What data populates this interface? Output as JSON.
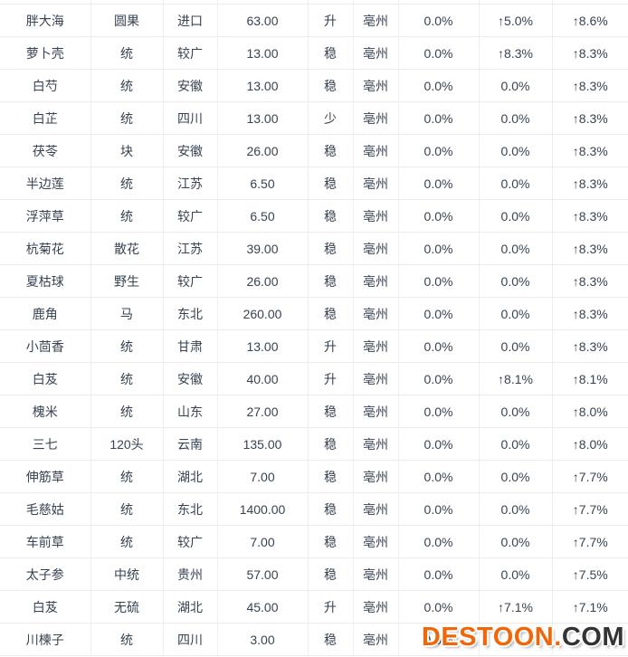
{
  "table": {
    "columns": [
      "name",
      "spec",
      "origin",
      "price",
      "trend",
      "market",
      "pct-1",
      "pct-2",
      "pct-3"
    ],
    "up_color": "#ff6633",
    "rows": [
      [
        "胖大海",
        "圆果",
        "进口",
        "63.00",
        "升",
        "亳州",
        "0.0%",
        "↑5.0%",
        "↑8.6%"
      ],
      [
        "萝卜壳",
        "统",
        "较广",
        "13.00",
        "稳",
        "亳州",
        "0.0%",
        "↑8.3%",
        "↑8.3%"
      ],
      [
        "白芍",
        "统",
        "安徽",
        "13.00",
        "稳",
        "亳州",
        "0.0%",
        "0.0%",
        "↑8.3%"
      ],
      [
        "白芷",
        "统",
        "四川",
        "13.00",
        "少",
        "亳州",
        "0.0%",
        "0.0%",
        "↑8.3%"
      ],
      [
        "茯苓",
        "块",
        "安徽",
        "26.00",
        "稳",
        "亳州",
        "0.0%",
        "0.0%",
        "↑8.3%"
      ],
      [
        "半边莲",
        "统",
        "江苏",
        "6.50",
        "稳",
        "亳州",
        "0.0%",
        "0.0%",
        "↑8.3%"
      ],
      [
        "浮萍草",
        "统",
        "较广",
        "6.50",
        "稳",
        "亳州",
        "0.0%",
        "0.0%",
        "↑8.3%"
      ],
      [
        "杭菊花",
        "散花",
        "江苏",
        "39.00",
        "稳",
        "亳州",
        "0.0%",
        "0.0%",
        "↑8.3%"
      ],
      [
        "夏枯球",
        "野生",
        "较广",
        "26.00",
        "稳",
        "亳州",
        "0.0%",
        "0.0%",
        "↑8.3%"
      ],
      [
        "鹿角",
        "马",
        "东北",
        "260.00",
        "稳",
        "亳州",
        "0.0%",
        "0.0%",
        "↑8.3%"
      ],
      [
        "小茴香",
        "统",
        "甘肃",
        "13.00",
        "升",
        "亳州",
        "0.0%",
        "0.0%",
        "↑8.3%"
      ],
      [
        "白芨",
        "统",
        "安徽",
        "40.00",
        "升",
        "亳州",
        "0.0%",
        "↑8.1%",
        "↑8.1%"
      ],
      [
        "槐米",
        "统",
        "山东",
        "27.00",
        "稳",
        "亳州",
        "0.0%",
        "0.0%",
        "↑8.0%"
      ],
      [
        "三七",
        "120头",
        "云南",
        "135.00",
        "稳",
        "亳州",
        "0.0%",
        "0.0%",
        "↑8.0%"
      ],
      [
        "伸筋草",
        "统",
        "湖北",
        "7.00",
        "稳",
        "亳州",
        "0.0%",
        "0.0%",
        "↑7.7%"
      ],
      [
        "毛慈姑",
        "统",
        "东北",
        "1400.00",
        "稳",
        "亳州",
        "0.0%",
        "0.0%",
        "↑7.7%"
      ],
      [
        "车前草",
        "统",
        "较广",
        "7.00",
        "稳",
        "亳州",
        "0.0%",
        "0.0%",
        "↑7.7%"
      ],
      [
        "太子参",
        "中统",
        "贵州",
        "57.00",
        "稳",
        "亳州",
        "0.0%",
        "0.0%",
        "↑7.5%"
      ],
      [
        "白芨",
        "无硫",
        "湖北",
        "45.00",
        "升",
        "亳州",
        "0.0%",
        "↑7.1%",
        "↑7.1%"
      ],
      [
        "川楝子",
        "统",
        "四川",
        "3.00",
        "稳",
        "亳州",
        "0.0%",
        "",
        ""
      ]
    ]
  },
  "watermark": {
    "brand": "DESTOON",
    "dot": ".",
    "suffix": "COM",
    "brand_color": "#f2660a",
    "suffix_color": "#333333"
  }
}
